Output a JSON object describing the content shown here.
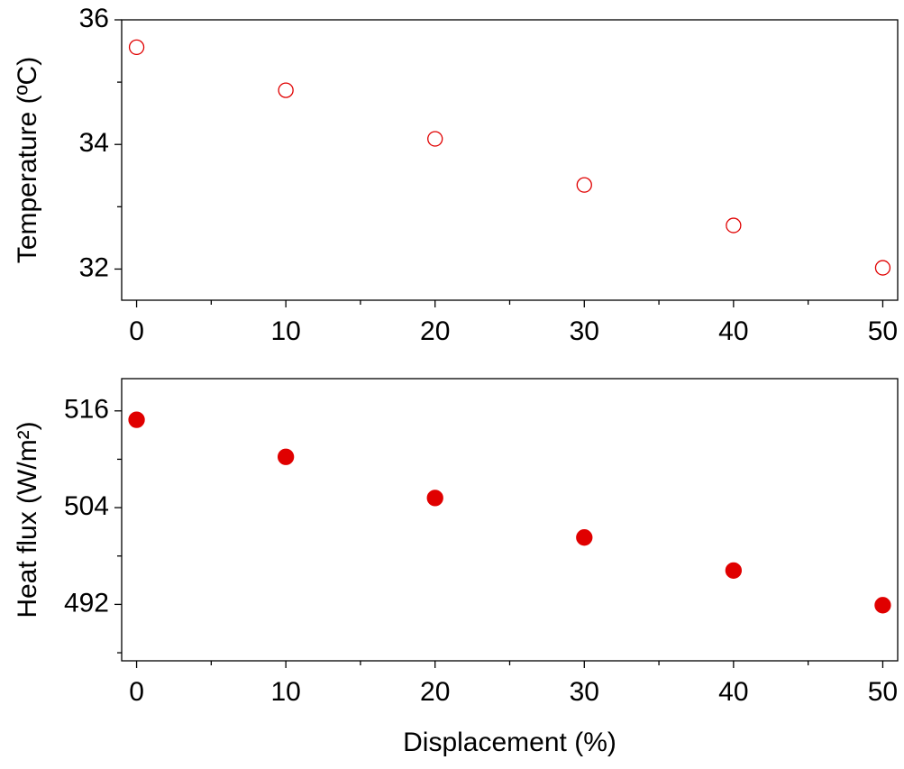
{
  "chart_data": [
    {
      "type": "scatter",
      "ylabel": "Temperature (ºC)",
      "x": [
        0,
        10,
        20,
        30,
        40,
        50
      ],
      "series": [
        {
          "color": "#e00000",
          "marker": "open",
          "values": [
            35.56,
            34.87,
            34.09,
            33.35,
            32.7,
            32.02
          ]
        }
      ],
      "xlim": [
        -1,
        51
      ],
      "xticks": [
        0,
        10,
        20,
        30,
        40,
        50
      ],
      "xminorticks": [
        5,
        15,
        25,
        35,
        45
      ],
      "ylim": [
        31.5,
        36
      ],
      "yticks": [
        32,
        34,
        36
      ],
      "yminorticks": [
        33,
        35
      ]
    },
    {
      "type": "scatter",
      "ylabel": "Heat flux (W/m²)",
      "xlabel": "Displacement (%)",
      "x": [
        0,
        10,
        20,
        30,
        40,
        50
      ],
      "series": [
        {
          "color": "#e00000",
          "marker": "filled",
          "values": [
            514.9,
            510.3,
            505.2,
            500.3,
            496.2,
            491.9
          ]
        }
      ],
      "xlim": [
        -1,
        51
      ],
      "xticks": [
        0,
        10,
        20,
        30,
        40,
        50
      ],
      "xminorticks": [
        5,
        15,
        25,
        35,
        45
      ],
      "ylim": [
        485,
        520
      ],
      "yticks": [
        492,
        504,
        516
      ],
      "yminorticks": [
        486,
        498,
        510
      ]
    }
  ]
}
